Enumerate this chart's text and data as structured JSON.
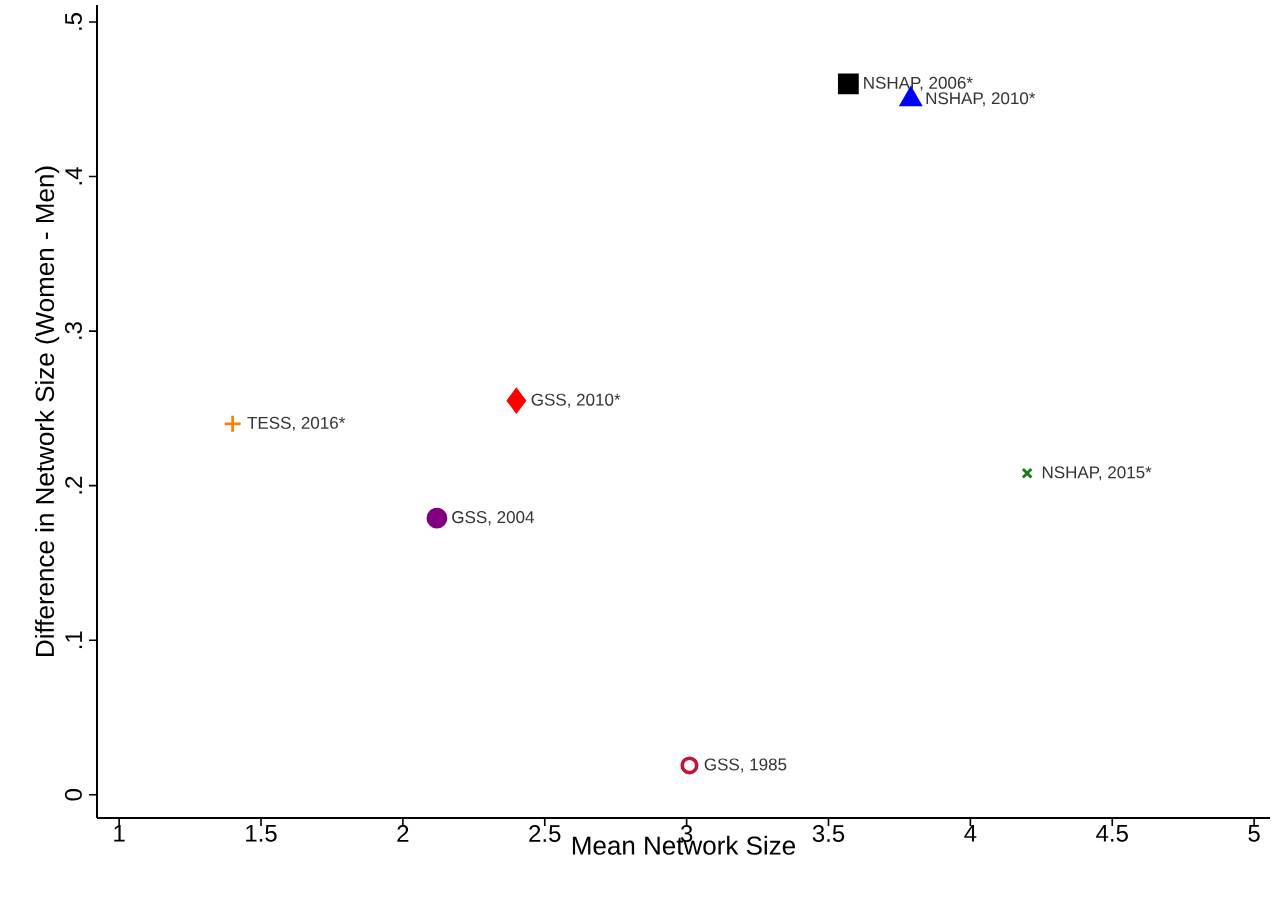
{
  "chart_data": {
    "type": "scatter",
    "xlabel": "Mean Network Size",
    "ylabel": "Difference in Network Size (Women - Men)",
    "xlim": [
      0.922,
      5.056
    ],
    "ylim": [
      -0.015,
      0.511
    ],
    "xticks": [
      1,
      1.5,
      2,
      2.5,
      3,
      3.5,
      4,
      4.5,
      5
    ],
    "yticks": [
      {
        "value": 0,
        "label": "0"
      },
      {
        "value": 0.1,
        "label": ".1"
      },
      {
        "value": 0.2,
        "label": ".2"
      },
      {
        "value": 0.3,
        "label": ".3"
      },
      {
        "value": 0.4,
        "label": ".4"
      },
      {
        "value": 0.5,
        "label": ".5"
      }
    ],
    "grid": false,
    "series": [
      {
        "name": "NSHAP, 2006*",
        "color": "#000000",
        "marker": "square",
        "x": [
          3.57
        ],
        "values": [
          0.46
        ]
      },
      {
        "name": "NSHAP, 2010*",
        "color": "#0000ff",
        "marker": "triangle",
        "x": [
          3.79
        ],
        "values": [
          0.45
        ]
      },
      {
        "name": "GSS, 2010*",
        "color": "#ff0000",
        "marker": "diamond",
        "x": [
          2.4
        ],
        "values": [
          0.255
        ]
      },
      {
        "name": "TESS, 2016*",
        "color": "#ff8000",
        "marker": "plus",
        "x": [
          1.4
        ],
        "values": [
          0.24
        ]
      },
      {
        "name": "NSHAP, 2015*",
        "color": "#1a7a1a",
        "marker": "cross",
        "x": [
          4.2
        ],
        "values": [
          0.208
        ]
      },
      {
        "name": "GSS, 2004",
        "color": "#800080",
        "marker": "circle",
        "x": [
          2.12
        ],
        "values": [
          0.179
        ]
      },
      {
        "name": "GSS, 1985",
        "color": "#c0143c",
        "marker": "circle-open",
        "x": [
          3.01
        ],
        "values": [
          0.019
        ]
      }
    ]
  }
}
